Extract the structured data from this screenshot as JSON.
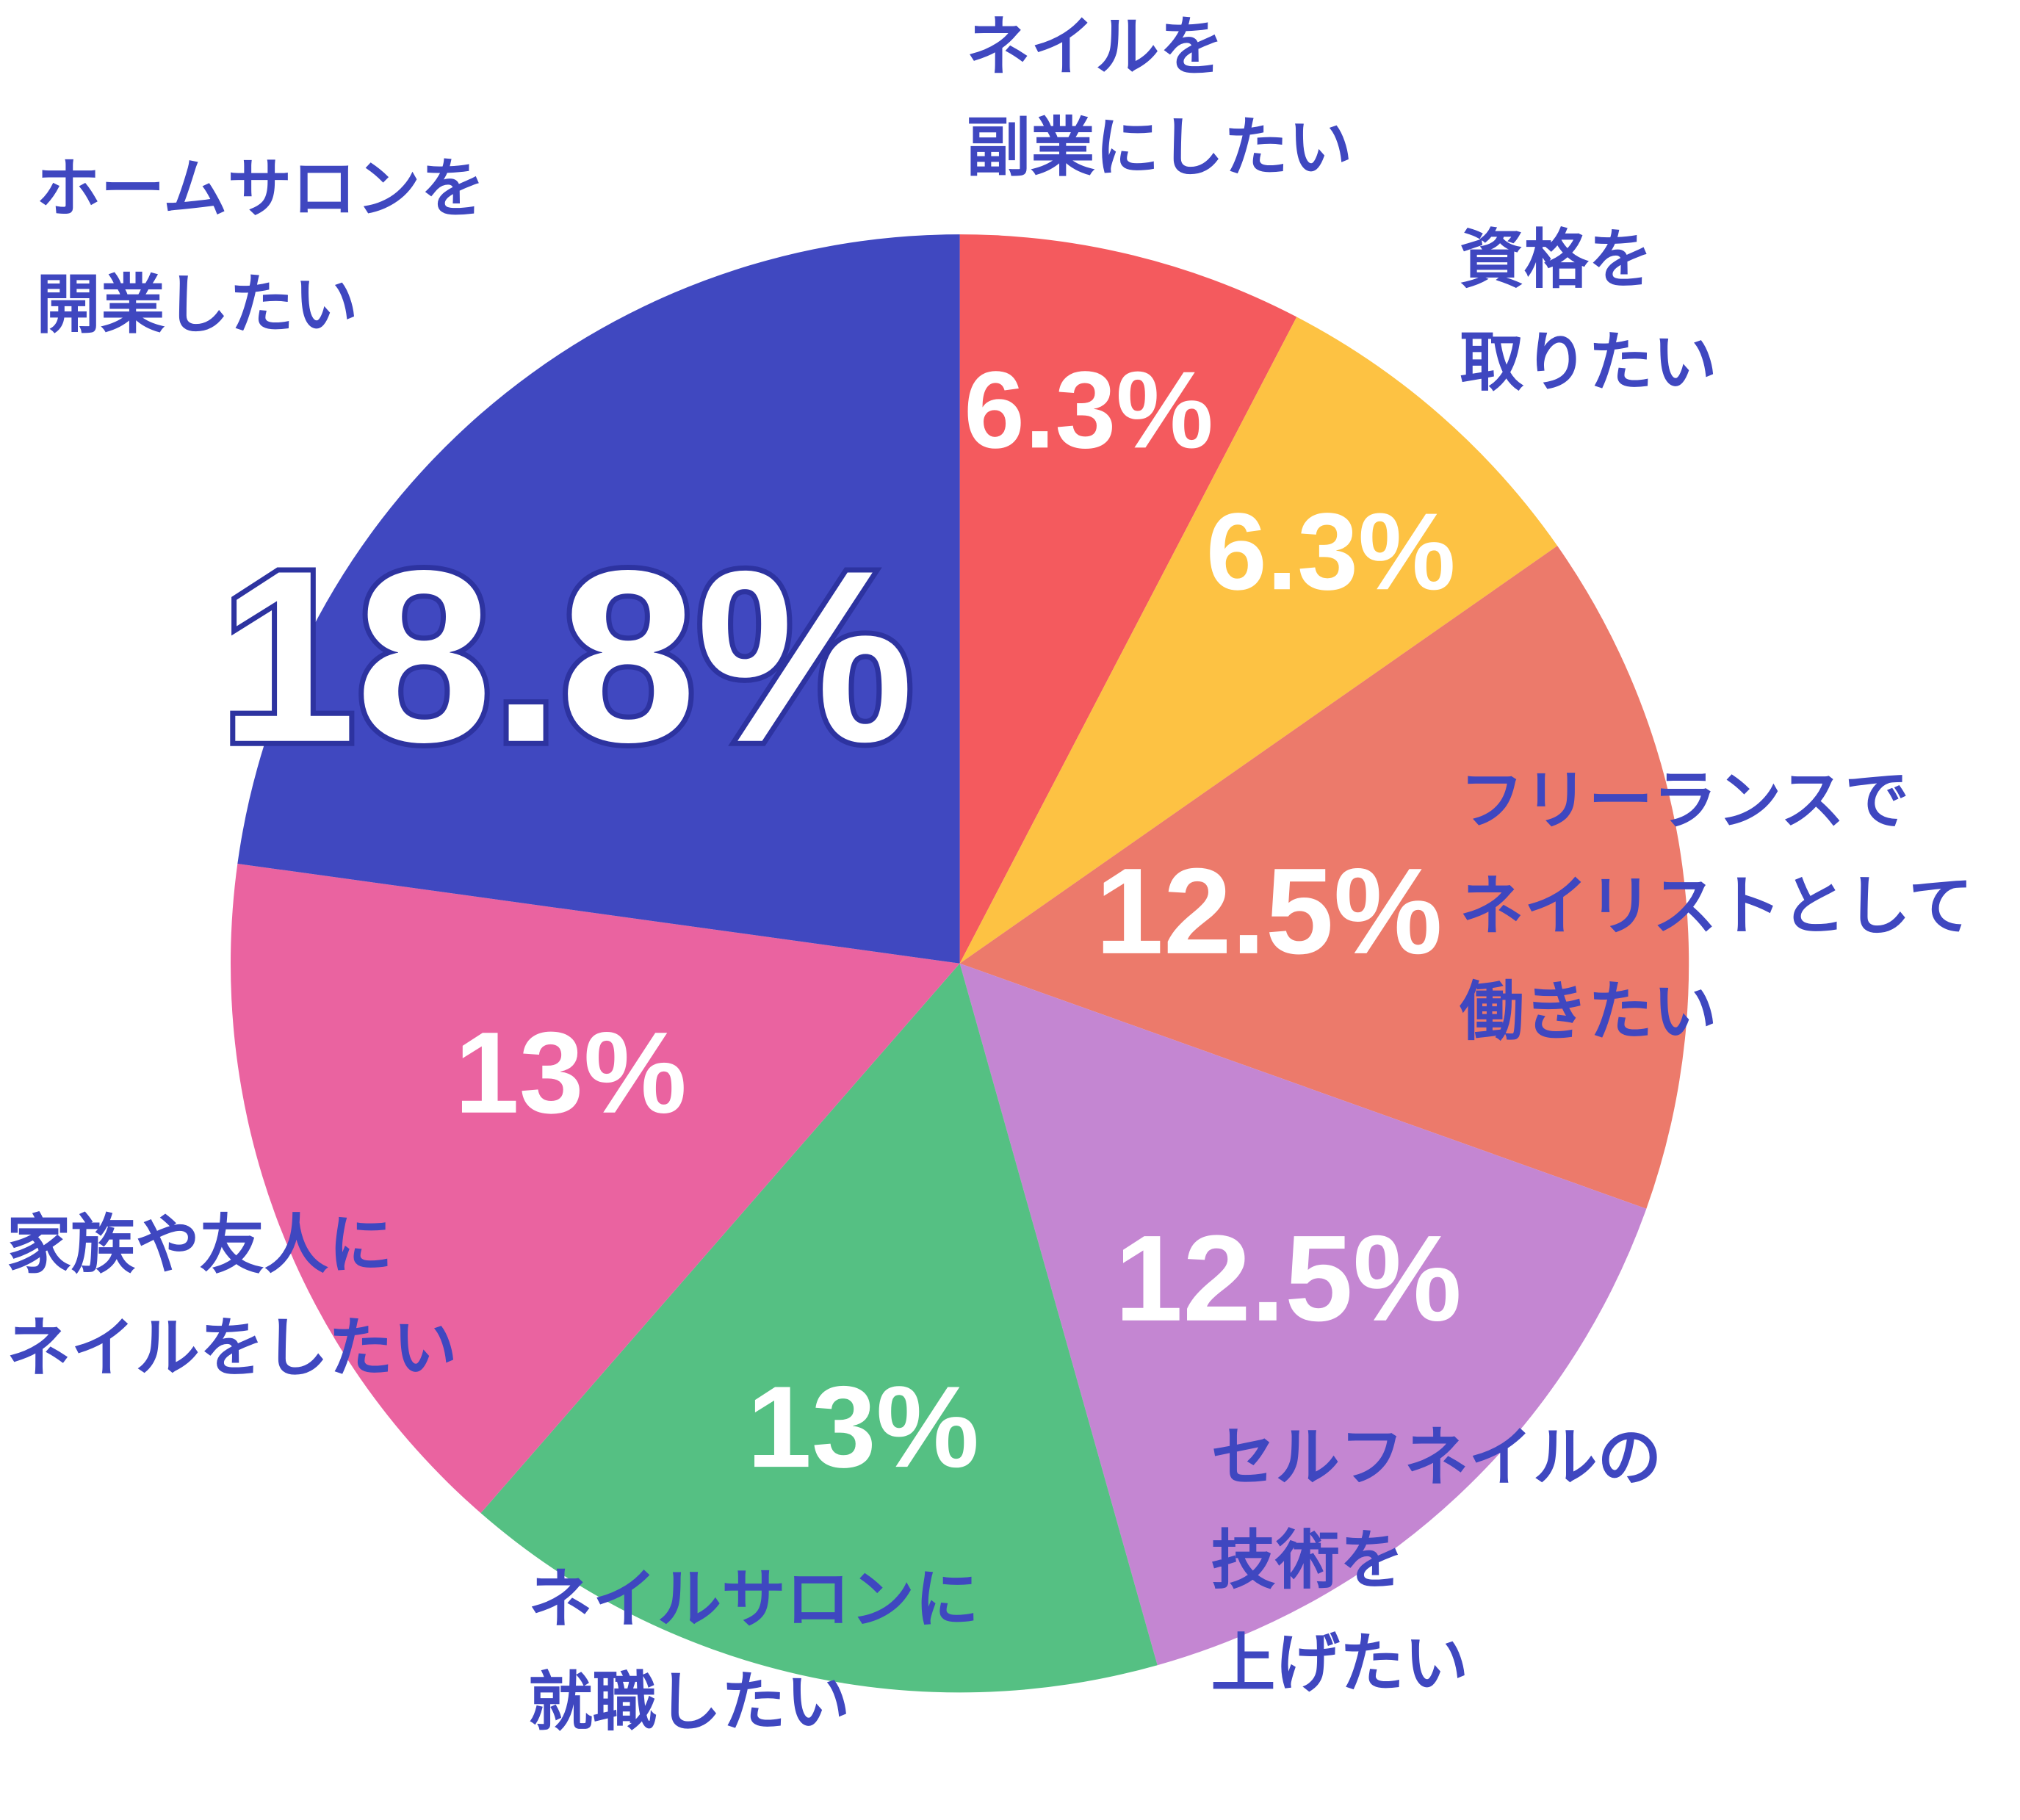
{
  "chart_data": {
    "type": "pie",
    "categories": [
      [
        "ネイルを",
        "副業にしたい"
      ],
      [
        "資格を",
        "取りたい"
      ],
      [
        "フリーランスで",
        "ネイリストとして",
        "働きたい"
      ],
      [
        "セルフネイルの",
        "技術を",
        "上げたい"
      ],
      [
        "ネイルサロンに",
        "就職したい"
      ],
      [
        "家族や友人に",
        "ネイルをしたい"
      ],
      [
        "ホームサロンを",
        "開業したい"
      ]
    ],
    "values": [
      6.3,
      6.3,
      12.5,
      12.5,
      13,
      13,
      18.8
    ],
    "value_labels": [
      "6.3%",
      "6.3%",
      "12.5%",
      "12.5%",
      "13%",
      "13%",
      "18.8%"
    ],
    "colors": [
      "#f45a5e",
      "#fdc243",
      "#ec7a6b",
      "#c486d2",
      "#55c083",
      "#ea63a0",
      "#4048c0"
    ]
  }
}
